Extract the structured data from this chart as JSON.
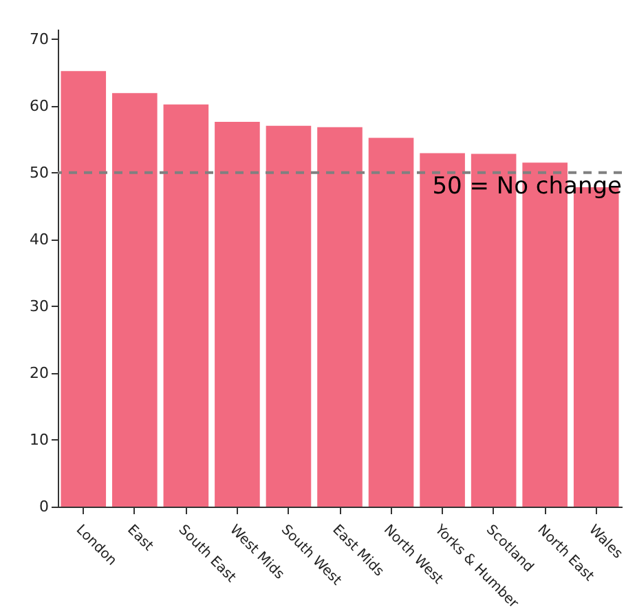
{
  "chart_data": {
    "type": "bar",
    "categories": [
      "London",
      "East",
      "South East",
      "West Mids",
      "South West",
      "East Mids",
      "North West",
      "Yorks & Humber",
      "Scotland",
      "North East",
      "Wales"
    ],
    "values": [
      65.2,
      61.9,
      60.2,
      57.6,
      57.0,
      56.8,
      55.2,
      52.9,
      52.8,
      51.5,
      47.8
    ],
    "color": "#f26a80",
    "ylim": [
      0,
      71.5
    ],
    "yticks": [
      0,
      10,
      20,
      30,
      40,
      50,
      60,
      70
    ],
    "grid": false,
    "ref_lines": [
      {
        "axis": "y",
        "value": 50,
        "label": "50 = No change",
        "color": "#808080",
        "line_style": "dashed"
      }
    ]
  }
}
